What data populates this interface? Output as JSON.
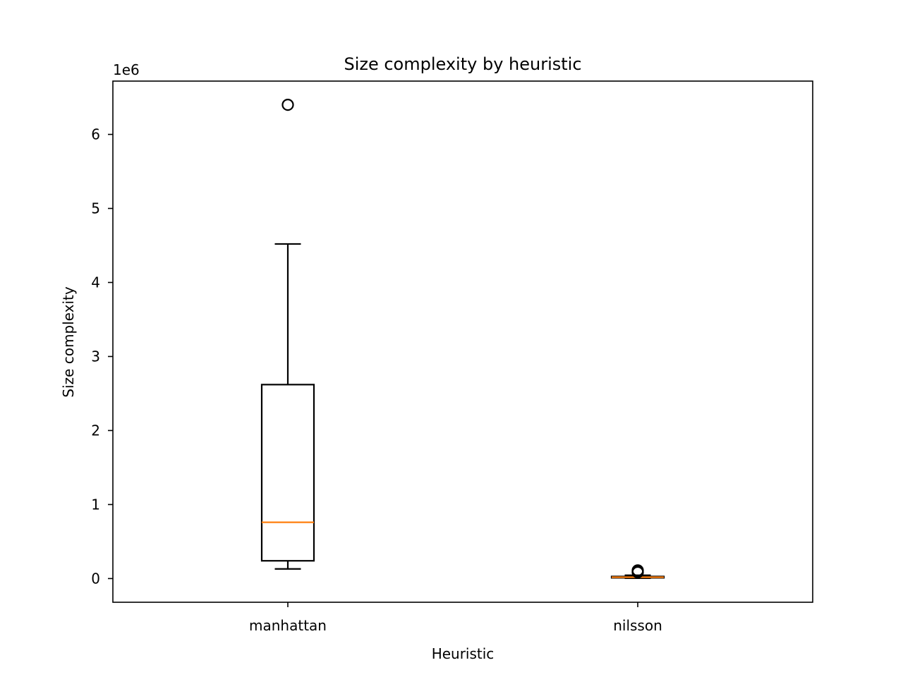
{
  "chart_data": {
    "type": "box",
    "title": "Size complexity by heuristic",
    "xlabel": "Heuristic",
    "ylabel": "Size complexity",
    "y_offset_label": "1e6",
    "y_scale": 1000000,
    "ylim": [
      -320000,
      6720000
    ],
    "yticks": [
      0,
      1,
      2,
      3,
      4,
      5,
      6
    ],
    "categories": [
      "manhattan",
      "nilsson"
    ],
    "boxes": [
      {
        "name": "manhattan",
        "whisker_low": 130000,
        "q1": 240000,
        "median": 760000,
        "q3": 2620000,
        "whisker_high": 4520000,
        "outliers": [
          6400000
        ]
      },
      {
        "name": "nilsson",
        "whisker_low": 5000,
        "q1": 10000,
        "median": 18000,
        "q3": 28000,
        "whisker_high": 45000,
        "outliers": [
          85000,
          95000,
          110000
        ]
      }
    ],
    "colors": {
      "box": "#000000",
      "median": "#ff7f0e",
      "background": "#ffffff"
    },
    "grid": false,
    "legend": "none"
  }
}
